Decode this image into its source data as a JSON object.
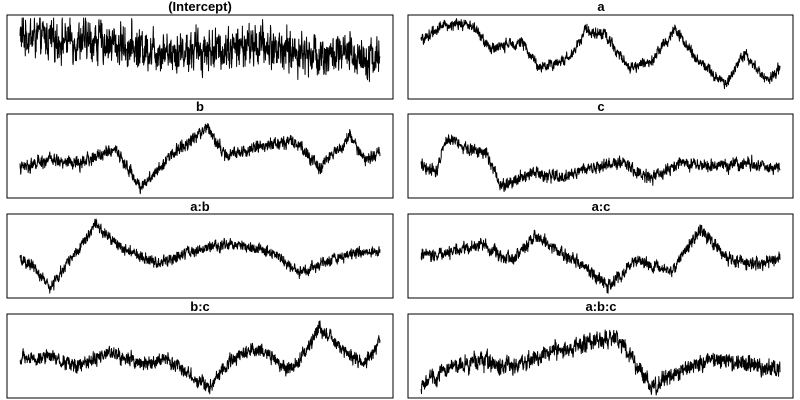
{
  "chart_data": [
    {
      "type": "line",
      "title": "(Intercept)",
      "x": [
        0,
        360
      ],
      "series": [
        {
          "profile": [
            {
              "x": 0,
              "y": 0.78
            },
            {
              "x": 40,
              "y": 0.72
            },
            {
              "x": 80,
              "y": 0.7
            },
            {
              "x": 120,
              "y": 0.62
            },
            {
              "x": 160,
              "y": 0.58
            },
            {
              "x": 200,
              "y": 0.6
            },
            {
              "x": 240,
              "y": 0.66
            },
            {
              "x": 280,
              "y": 0.55
            },
            {
              "x": 320,
              "y": 0.52
            },
            {
              "x": 360,
              "y": 0.5
            }
          ],
          "noise": 0.26
        }
      ]
    },
    {
      "type": "line",
      "title": "a",
      "x": [
        0,
        360
      ],
      "series": [
        {
          "profile": [
            {
              "x": 0,
              "y": 0.7
            },
            {
              "x": 20,
              "y": 0.9
            },
            {
              "x": 50,
              "y": 0.92
            },
            {
              "x": 70,
              "y": 0.6
            },
            {
              "x": 100,
              "y": 0.7
            },
            {
              "x": 120,
              "y": 0.35
            },
            {
              "x": 150,
              "y": 0.5
            },
            {
              "x": 165,
              "y": 0.85
            },
            {
              "x": 185,
              "y": 0.78
            },
            {
              "x": 210,
              "y": 0.35
            },
            {
              "x": 230,
              "y": 0.45
            },
            {
              "x": 255,
              "y": 0.85
            },
            {
              "x": 275,
              "y": 0.5
            },
            {
              "x": 305,
              "y": 0.15
            },
            {
              "x": 325,
              "y": 0.55
            },
            {
              "x": 345,
              "y": 0.2
            },
            {
              "x": 360,
              "y": 0.35
            }
          ],
          "noise": 0.07
        }
      ]
    },
    {
      "type": "line",
      "title": "b",
      "x": [
        0,
        360
      ],
      "series": [
        {
          "profile": [
            {
              "x": 0,
              "y": 0.35
            },
            {
              "x": 30,
              "y": 0.45
            },
            {
              "x": 60,
              "y": 0.4
            },
            {
              "x": 95,
              "y": 0.6
            },
            {
              "x": 120,
              "y": 0.1
            },
            {
              "x": 150,
              "y": 0.5
            },
            {
              "x": 170,
              "y": 0.7
            },
            {
              "x": 188,
              "y": 0.88
            },
            {
              "x": 205,
              "y": 0.5
            },
            {
              "x": 240,
              "y": 0.62
            },
            {
              "x": 275,
              "y": 0.7
            },
            {
              "x": 300,
              "y": 0.35
            },
            {
              "x": 330,
              "y": 0.75
            },
            {
              "x": 345,
              "y": 0.45
            },
            {
              "x": 360,
              "y": 0.55
            }
          ],
          "noise": 0.08
        }
      ]
    },
    {
      "type": "line",
      "title": "c",
      "x": [
        0,
        360
      ],
      "series": [
        {
          "profile": [
            {
              "x": 0,
              "y": 0.4
            },
            {
              "x": 15,
              "y": 0.3
            },
            {
              "x": 25,
              "y": 0.75
            },
            {
              "x": 45,
              "y": 0.6
            },
            {
              "x": 65,
              "y": 0.55
            },
            {
              "x": 80,
              "y": 0.12
            },
            {
              "x": 110,
              "y": 0.28
            },
            {
              "x": 140,
              "y": 0.22
            },
            {
              "x": 170,
              "y": 0.35
            },
            {
              "x": 200,
              "y": 0.42
            },
            {
              "x": 230,
              "y": 0.2
            },
            {
              "x": 260,
              "y": 0.4
            },
            {
              "x": 300,
              "y": 0.35
            },
            {
              "x": 330,
              "y": 0.42
            },
            {
              "x": 360,
              "y": 0.33
            }
          ],
          "noise": 0.08
        }
      ]
    },
    {
      "type": "line",
      "title": "a:b",
      "x": [
        0,
        360
      ],
      "series": [
        {
          "profile": [
            {
              "x": 0,
              "y": 0.45
            },
            {
              "x": 15,
              "y": 0.35
            },
            {
              "x": 30,
              "y": 0.08
            },
            {
              "x": 50,
              "y": 0.45
            },
            {
              "x": 75,
              "y": 0.9
            },
            {
              "x": 100,
              "y": 0.6
            },
            {
              "x": 140,
              "y": 0.4
            },
            {
              "x": 170,
              "y": 0.55
            },
            {
              "x": 210,
              "y": 0.65
            },
            {
              "x": 250,
              "y": 0.55
            },
            {
              "x": 280,
              "y": 0.3
            },
            {
              "x": 310,
              "y": 0.45
            },
            {
              "x": 340,
              "y": 0.55
            },
            {
              "x": 360,
              "y": 0.55
            }
          ],
          "noise": 0.07
        }
      ]
    },
    {
      "type": "line",
      "title": "a:c",
      "x": [
        0,
        360
      ],
      "series": [
        {
          "profile": [
            {
              "x": 0,
              "y": 0.5
            },
            {
              "x": 30,
              "y": 0.55
            },
            {
              "x": 60,
              "y": 0.65
            },
            {
              "x": 90,
              "y": 0.45
            },
            {
              "x": 115,
              "y": 0.75
            },
            {
              "x": 140,
              "y": 0.55
            },
            {
              "x": 170,
              "y": 0.3
            },
            {
              "x": 190,
              "y": 0.1
            },
            {
              "x": 215,
              "y": 0.45
            },
            {
              "x": 250,
              "y": 0.3
            },
            {
              "x": 280,
              "y": 0.85
            },
            {
              "x": 310,
              "y": 0.45
            },
            {
              "x": 340,
              "y": 0.4
            },
            {
              "x": 360,
              "y": 0.45
            }
          ],
          "noise": 0.08
        }
      ]
    },
    {
      "type": "line",
      "title": "b:c",
      "x": [
        0,
        360
      ],
      "series": [
        {
          "profile": [
            {
              "x": 0,
              "y": 0.45
            },
            {
              "x": 30,
              "y": 0.5
            },
            {
              "x": 60,
              "y": 0.35
            },
            {
              "x": 90,
              "y": 0.55
            },
            {
              "x": 120,
              "y": 0.4
            },
            {
              "x": 150,
              "y": 0.45
            },
            {
              "x": 175,
              "y": 0.2
            },
            {
              "x": 190,
              "y": 0.1
            },
            {
              "x": 210,
              "y": 0.45
            },
            {
              "x": 240,
              "y": 0.6
            },
            {
              "x": 270,
              "y": 0.3
            },
            {
              "x": 300,
              "y": 0.85
            },
            {
              "x": 325,
              "y": 0.55
            },
            {
              "x": 345,
              "y": 0.4
            },
            {
              "x": 360,
              "y": 0.7
            }
          ],
          "noise": 0.09
        }
      ]
    },
    {
      "type": "line",
      "title": "a:b:c",
      "x": [
        0,
        360
      ],
      "series": [
        {
          "profile": [
            {
              "x": 0,
              "y": 0.15
            },
            {
              "x": 30,
              "y": 0.35
            },
            {
              "x": 60,
              "y": 0.45
            },
            {
              "x": 90,
              "y": 0.35
            },
            {
              "x": 130,
              "y": 0.55
            },
            {
              "x": 160,
              "y": 0.65
            },
            {
              "x": 195,
              "y": 0.75
            },
            {
              "x": 215,
              "y": 0.4
            },
            {
              "x": 230,
              "y": 0.08
            },
            {
              "x": 260,
              "y": 0.3
            },
            {
              "x": 290,
              "y": 0.45
            },
            {
              "x": 320,
              "y": 0.4
            },
            {
              "x": 345,
              "y": 0.35
            },
            {
              "x": 360,
              "y": 0.35
            }
          ],
          "noise": 0.11
        }
      ]
    }
  ]
}
